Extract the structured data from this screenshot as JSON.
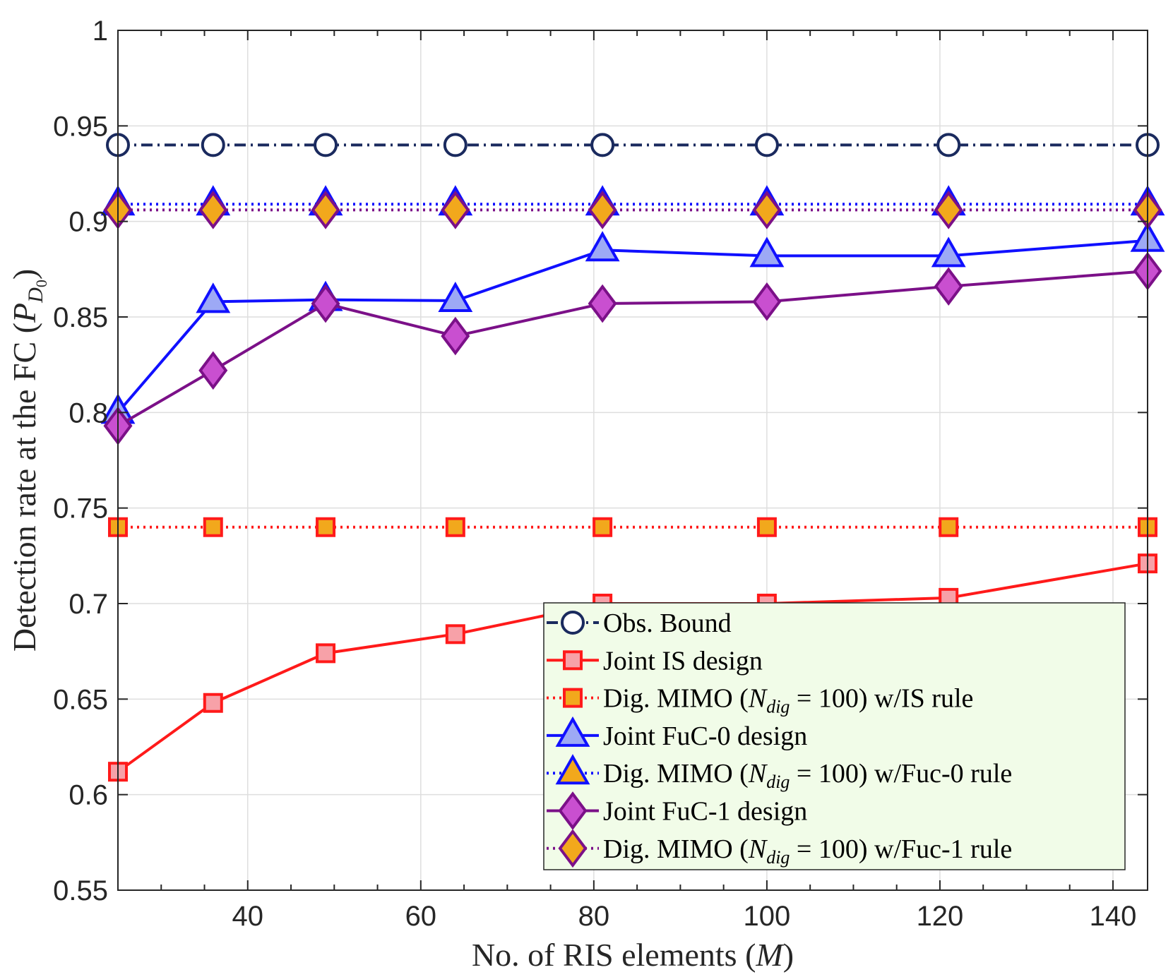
{
  "chart_data": {
    "type": "line",
    "title": "",
    "xlabel": "No. of RIS elements (M)",
    "ylabel": "Detection rate at the FC (P_{D_0})",
    "xlim": [
      25,
      144
    ],
    "ylim": [
      0.55,
      1.0
    ],
    "xticks": [
      40,
      60,
      80,
      100,
      120,
      140
    ],
    "yticks": [
      0.55,
      0.6,
      0.65,
      0.7,
      0.75,
      0.8,
      0.85,
      0.9,
      0.95,
      1.0
    ],
    "ytick_labels": [
      "0.55",
      "0.6",
      "0.65",
      "0.7",
      "0.75",
      "0.8",
      "0.85",
      "0.9",
      "0.95",
      "1"
    ],
    "grid": true,
    "legend_position": "bottom-right",
    "x": [
      25,
      36,
      49,
      64,
      81,
      100,
      121,
      144
    ],
    "series": [
      {
        "name": "Obs. Bound",
        "values": [
          0.94,
          0.94,
          0.94,
          0.94,
          0.94,
          0.94,
          0.94,
          0.94
        ],
        "color": "#1a2a5e",
        "marker_fill": "#ffffff",
        "marker": "circle",
        "dash": "dashdot"
      },
      {
        "name": "Joint IS design",
        "values": [
          0.612,
          0.648,
          0.674,
          0.684,
          0.7,
          0.7,
          0.703,
          0.721
        ],
        "color": "#ff1a1a",
        "marker_fill": "#f7a1a8",
        "marker": "square",
        "dash": "solid"
      },
      {
        "name": "Dig. MIMO (N_dig = 100) w/IS rule",
        "values": [
          0.74,
          0.74,
          0.74,
          0.74,
          0.74,
          0.74,
          0.74,
          0.74
        ],
        "color": "#ff1a1a",
        "marker_fill": "#f2a81c",
        "marker": "square",
        "dash": "dotted"
      },
      {
        "name": "Joint FuC-0 design",
        "values": [
          0.8,
          0.858,
          0.859,
          0.8585,
          0.885,
          0.882,
          0.882,
          0.89
        ],
        "color": "#1010ff",
        "marker_fill": "#9da9f5",
        "marker": "triangle",
        "dash": "solid"
      },
      {
        "name": "Dig. MIMO (N_dig = 100) w/Fuc-0 rule",
        "values": [
          0.909,
          0.909,
          0.909,
          0.909,
          0.909,
          0.909,
          0.909,
          0.909
        ],
        "color": "#1010ff",
        "marker_fill": "#f2a81c",
        "marker": "triangle",
        "dash": "dotted"
      },
      {
        "name": "Joint FuC-1 design",
        "values": [
          0.793,
          0.822,
          0.857,
          0.84,
          0.857,
          0.858,
          0.866,
          0.874
        ],
        "color": "#7b1088",
        "marker_fill": "#c94fd0",
        "marker": "diamond",
        "dash": "solid"
      },
      {
        "name": "Dig. MIMO (N_dig = 100) w/Fuc-1 rule",
        "values": [
          0.906,
          0.906,
          0.906,
          0.906,
          0.906,
          0.906,
          0.906,
          0.906
        ],
        "color": "#7b1088",
        "marker_fill": "#f2a81c",
        "marker": "diamond",
        "dash": "dotted"
      }
    ],
    "legend_entries": [
      {
        "prefix": "Obs. Bound",
        "var": "",
        "sub": "",
        "suffix": ""
      },
      {
        "prefix": "Joint IS design",
        "var": "",
        "sub": "",
        "suffix": ""
      },
      {
        "prefix": "Dig. MIMO (",
        "var": "N",
        "sub": "dig",
        "suffix": " = 100) w/IS rule"
      },
      {
        "prefix": "Joint FuC-0 design",
        "var": "",
        "sub": "",
        "suffix": ""
      },
      {
        "prefix": "Dig. MIMO (",
        "var": "N",
        "sub": "dig",
        "suffix": " = 100) w/Fuc-0 rule"
      },
      {
        "prefix": "Joint FuC-1 design",
        "var": "",
        "sub": "",
        "suffix": ""
      },
      {
        "prefix": "Dig. MIMO (",
        "var": "N",
        "sub": "dig",
        "suffix": " = 100) w/Fuc-1 rule"
      }
    ],
    "xlabel_parts": {
      "prefix": "No. of RIS elements (",
      "var": "M",
      "suffix": ")"
    },
    "ylabel_parts": {
      "prefix": "Detection rate at the FC (",
      "var": "P",
      "sub": "D",
      "subsub": "0",
      "suffix": ")"
    },
    "colors": {
      "axis": "#262626",
      "grid": "#dedede",
      "legend_bg": "#f1fce8",
      "legend_border": "#262626"
    }
  }
}
